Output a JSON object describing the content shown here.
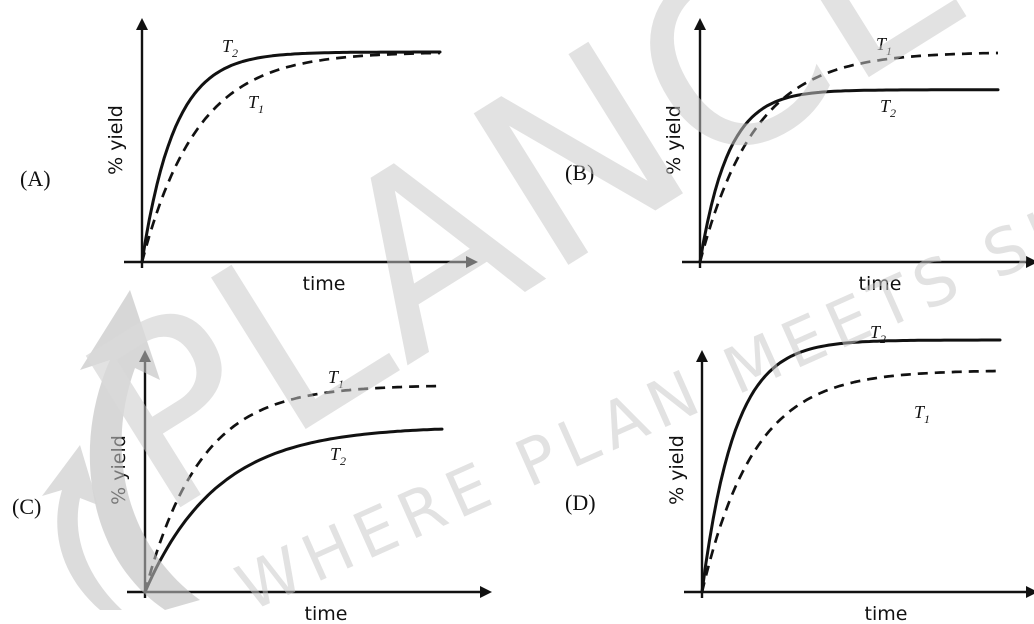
{
  "chart_data": [
    {
      "type": "line",
      "panel_label": "(A)",
      "xlabel": "time",
      "ylabel": "% yield",
      "series": [
        {
          "name": "T2",
          "label": "T",
          "sub": "2",
          "style": "solid",
          "x": [
            0,
            0.2,
            0.4,
            0.6,
            0.8,
            1.0
          ],
          "values": [
            0,
            0.84,
            0.97,
            0.995,
            1.0,
            1.0
          ]
        },
        {
          "name": "T1",
          "label": "T",
          "sub": "1",
          "style": "dashed",
          "x": [
            0,
            0.2,
            0.4,
            0.6,
            0.8,
            1.0
          ],
          "values": [
            0,
            0.66,
            0.88,
            0.96,
            0.99,
            1.0
          ]
        }
      ]
    },
    {
      "type": "line",
      "panel_label": "(B)",
      "xlabel": "time",
      "ylabel": "% yield",
      "series": [
        {
          "name": "T1",
          "label": "T",
          "sub": "1",
          "style": "dashed",
          "x": [
            0,
            0.2,
            0.4,
            0.6,
            0.8,
            1.0
          ],
          "values": [
            0,
            0.66,
            0.88,
            0.96,
            0.99,
            1.0
          ]
        },
        {
          "name": "T2",
          "label": "T",
          "sub": "2",
          "style": "solid",
          "x": [
            0,
            0.2,
            0.4,
            0.6,
            0.8,
            1.0
          ],
          "values": [
            0,
            0.72,
            0.81,
            0.82,
            0.82,
            0.82
          ]
        }
      ]
    },
    {
      "type": "line",
      "panel_label": "(C)",
      "xlabel": "time",
      "ylabel": "% yield",
      "series": [
        {
          "name": "T1",
          "label": "T",
          "sub": "1",
          "style": "dashed",
          "x": [
            0,
            0.2,
            0.4,
            0.6,
            0.8,
            1.0
          ],
          "values": [
            0,
            0.66,
            0.88,
            0.96,
            0.99,
            1.0
          ]
        },
        {
          "name": "T2",
          "label": "T",
          "sub": "2",
          "style": "solid",
          "x": [
            0,
            0.2,
            0.4,
            0.6,
            0.8,
            1.0
          ],
          "values": [
            0,
            0.45,
            0.66,
            0.76,
            0.79,
            0.8
          ]
        }
      ]
    },
    {
      "type": "line",
      "panel_label": "(D)",
      "xlabel": "time",
      "ylabel": "% yield",
      "series": [
        {
          "name": "T2",
          "label": "T",
          "sub": "2",
          "style": "solid",
          "x": [
            0,
            0.2,
            0.4,
            0.6,
            0.8,
            1.0
          ],
          "values": [
            0,
            0.84,
            0.97,
            0.995,
            1.0,
            1.0
          ]
        },
        {
          "name": "T1",
          "label": "T",
          "sub": "1",
          "style": "dashed",
          "x": [
            0,
            0.2,
            0.4,
            0.6,
            0.8,
            1.0
          ],
          "values": [
            0,
            0.6,
            0.79,
            0.86,
            0.88,
            0.88
          ]
        }
      ]
    }
  ],
  "watermark": {
    "brand": "PLANCESS",
    "tagline": "WHERE PLAN MEETS SUCCESS",
    "color": "#c8c8c8"
  }
}
